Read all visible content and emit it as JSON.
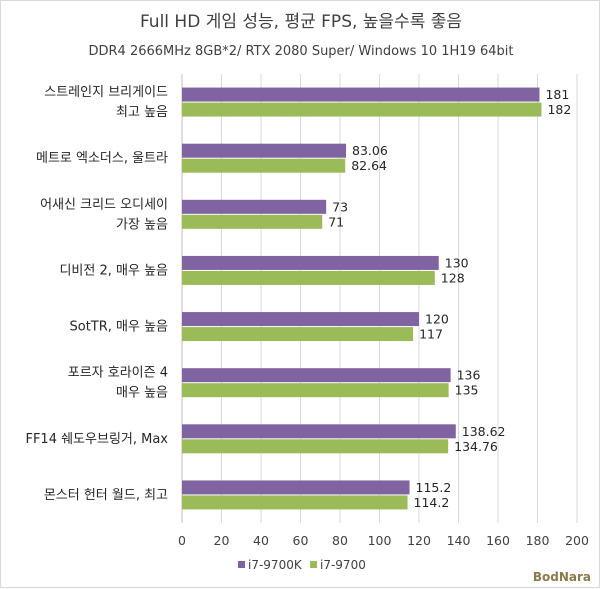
{
  "chart_data": {
    "type": "bar",
    "orientation": "horizontal",
    "title": "Full HD 게임 성능, 평균 FPS, 높을수록 좋음",
    "subtitle": "DDR4 2666MHz 8GB*2/ RTX 2080 Super/ Windows 10 1H19 64bit",
    "categories": [
      [
        "스트레인지 브리게이드",
        "최고 높음"
      ],
      [
        "메트로 엑소더스, 울트라"
      ],
      [
        "어새신 크리드 오디세이",
        "가장 높음"
      ],
      [
        "디비전 2, 매우 높음"
      ],
      [
        "SotTR, 매우 높음"
      ],
      [
        "포르자 호라이즌 4",
        "매우 높음"
      ],
      [
        "FF14 쉐도우브링거, Max"
      ],
      [
        "몬스터 헌터 월드, 최고"
      ]
    ],
    "series": [
      {
        "name": "i7-9700K",
        "color": "#8064a2",
        "values": [
          181,
          83.06,
          73,
          130,
          120,
          136,
          138.62,
          115.2
        ],
        "labels": [
          "181",
          "83.06",
          "73",
          "130",
          "120",
          "136",
          "138.62",
          "115.2"
        ]
      },
      {
        "name": "i7-9700",
        "color": "#9bbb59",
        "values": [
          182,
          82.64,
          71,
          128,
          117,
          135,
          134.76,
          114.2
        ],
        "labels": [
          "182",
          "82.64",
          "71",
          "128",
          "117",
          "135",
          "134.76",
          "114.2"
        ]
      }
    ],
    "xlim": [
      0,
      200
    ],
    "xticks": [
      "0",
      "20",
      "40",
      "60",
      "80",
      "100",
      "120",
      "140",
      "160",
      "180",
      "200"
    ],
    "grid": true,
    "legend": "bottom"
  },
  "watermark": "BodNara"
}
